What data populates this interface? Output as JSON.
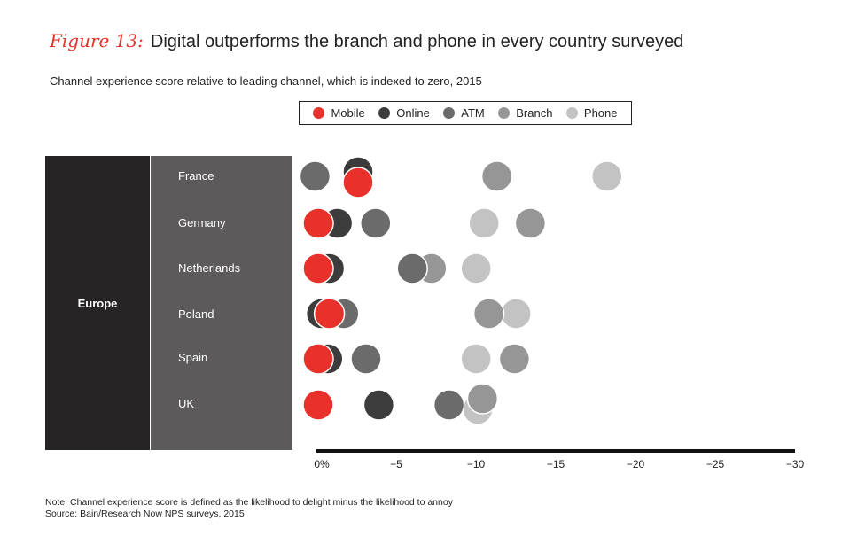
{
  "header": {
    "figure_label": "Figure 13:",
    "title": "Digital outperforms the branch and phone in every country surveyed",
    "subtitle": "Channel experience score relative to leading channel, which is indexed to zero, 2015"
  },
  "legend": [
    {
      "name": "Mobile",
      "color": "#e8312a"
    },
    {
      "name": "Online",
      "color": "#3d3c3c"
    },
    {
      "name": "ATM",
      "color": "#6c6b6b"
    },
    {
      "name": "Branch",
      "color": "#979696"
    },
    {
      "name": "Phone",
      "color": "#c4c3c3"
    }
  ],
  "region": "Europe",
  "chart_data": {
    "type": "scatter",
    "title": "Digital outperforms the branch and phone in every country surveyed",
    "subtitle": "Channel experience score relative to leading channel, which is indexed to zero, 2015",
    "categories": [
      "France",
      "Germany",
      "Netherlands",
      "Poland",
      "Spain",
      "UK"
    ],
    "x_ticks": [
      0,
      -5,
      -10,
      -15,
      -20,
      -25,
      -30
    ],
    "x_tick_labels": [
      "0%",
      "−5",
      "−10",
      "−15",
      "−20",
      "−25",
      "−30"
    ],
    "xlim": [
      0,
      -30
    ],
    "series": [
      {
        "name": "Phone",
        "values": [
          -18.1,
          -10.4,
          -9.9,
          -12.4,
          -9.9,
          -10.0
        ]
      },
      {
        "name": "Branch",
        "values": [
          -11.2,
          -13.3,
          -7.1,
          -10.7,
          -12.3,
          -10.3
        ]
      },
      {
        "name": "ATM",
        "values": [
          0.2,
          -3.6,
          -5.9,
          -1.6,
          -3.0,
          -8.2
        ]
      },
      {
        "name": "Online",
        "values": [
          -2.5,
          -1.2,
          -0.7,
          -0.2,
          -0.6,
          -3.8
        ]
      },
      {
        "name": "Mobile",
        "values": [
          -2.5,
          0.0,
          0.0,
          -0.7,
          0.0,
          0.0
        ]
      }
    ],
    "grid": false,
    "legend_position": "top"
  },
  "notes": {
    "note": "Note: Channel experience score is defined as the likelihood to delight minus the likelihood to annoy",
    "source": "Source: Bain/Research Now NPS surveys, 2015"
  }
}
